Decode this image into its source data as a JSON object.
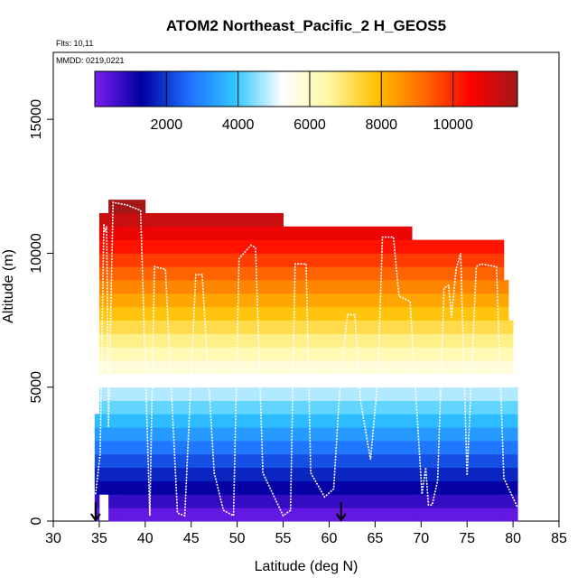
{
  "chart_data": {
    "type": "heatmap",
    "title": "ATOM2 Northeast_Pacific_2 H_GEOS5",
    "annotations": {
      "flights": "Flts: 10,11",
      "dates": "MMDD: 0219,0221"
    },
    "xlabel": "Latitude (deg N)",
    "ylabel": "Altitude (m)",
    "xlim": [
      30,
      85
    ],
    "ylim": [
      0,
      17500
    ],
    "xticks": [
      30,
      35,
      40,
      45,
      50,
      55,
      60,
      65,
      70,
      75,
      80,
      85
    ],
    "yticks": [
      0,
      5000,
      10000,
      15000
    ],
    "colorbar": {
      "range": [
        0,
        11800
      ],
      "ticks": [
        2000,
        4000,
        6000,
        8000,
        10000
      ],
      "stops": [
        "#7a1ff0",
        "#0000a0",
        "#1e6fff",
        "#30c8ff",
        "#ffffff",
        "#fff7a0",
        "#ffc000",
        "#ff6a00",
        "#ff0000",
        "#a01818"
      ]
    },
    "field": {
      "description": "geopotential height sampled along flight track",
      "bin_height_m": 500,
      "columns": [
        {
          "lat_start": 34.5,
          "lat_end": 35.0,
          "alt_min": 0,
          "alt_max": 4000
        },
        {
          "lat_start": 35.0,
          "lat_end": 36.0,
          "alt_min": 1000,
          "alt_max": 11500
        },
        {
          "lat_start": 36.0,
          "lat_end": 37.5,
          "alt_min": 0,
          "alt_max": 12000
        },
        {
          "lat_start": 37.5,
          "lat_end": 40.0,
          "alt_min": 0,
          "alt_max": 12000
        },
        {
          "lat_start": 40.0,
          "lat_end": 55.0,
          "alt_min": 0,
          "alt_max": 11500
        },
        {
          "lat_start": 55.0,
          "lat_end": 69.0,
          "alt_min": 0,
          "alt_max": 11000
        },
        {
          "lat_start": 69.0,
          "lat_end": 79.0,
          "alt_min": 0,
          "alt_max": 10500
        },
        {
          "lat_start": 79.0,
          "lat_end": 79.5,
          "alt_min": 0,
          "alt_max": 9000
        },
        {
          "lat_start": 79.5,
          "lat_end": 80.0,
          "alt_min": 0,
          "alt_max": 7500
        },
        {
          "lat_start": 80.0,
          "lat_end": 80.5,
          "alt_min": 0,
          "alt_max": 5000
        }
      ]
    },
    "flight_track": {
      "lat": [
        34.6,
        35.1,
        35.5,
        35.6,
        35.8,
        36.0,
        36.5,
        38.0,
        39.5,
        40.5,
        41.0,
        42.2,
        43.5,
        44.3,
        45.5,
        46.2,
        47.5,
        48.5,
        49.6,
        50.2,
        51.5,
        52.0,
        52.8,
        55.0,
        55.8,
        56.3,
        57.5,
        58.0,
        59.5,
        60.5,
        61.2,
        62.0,
        62.8,
        63.4,
        64.5,
        65.3,
        65.8,
        67.0,
        67.6,
        68.8,
        70.1,
        70.5,
        70.8,
        71.2,
        71.8,
        72.5,
        73.0,
        73.3,
        73.8,
        74.3,
        75.0,
        76.0,
        76.5,
        78.2,
        79.0,
        80.5
      ],
      "alt": [
        1000,
        2500,
        11100,
        10800,
        11000,
        3500,
        11900,
        11800,
        11600,
        200,
        9500,
        9400,
        300,
        200,
        9200,
        9200,
        1800,
        400,
        200,
        9800,
        10300,
        10200,
        1800,
        200,
        400,
        9600,
        9600,
        1800,
        900,
        1200,
        5200,
        7700,
        7700,
        4500,
        2300,
        5300,
        10600,
        10600,
        8400,
        8200,
        1000,
        2000,
        600,
        600,
        1500,
        8700,
        8800,
        7600,
        9400,
        10000,
        1700,
        9500,
        9600,
        9500,
        1600,
        500
      ]
    },
    "markers": [
      {
        "type": "arrow",
        "lat": 34.6,
        "label": ""
      },
      {
        "type": "arrow",
        "lat": 61.3,
        "label": ""
      }
    ]
  }
}
